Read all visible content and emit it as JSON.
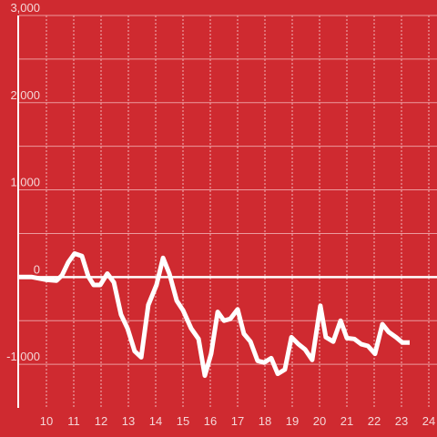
{
  "chart_data": {
    "type": "line",
    "x": [
      9.0,
      9.47,
      9.97,
      10.37,
      10.57,
      10.8,
      11.03,
      11.3,
      11.53,
      11.73,
      11.97,
      12.23,
      12.47,
      12.73,
      12.97,
      13.23,
      13.47,
      13.73,
      14.03,
      14.27,
      14.5,
      14.77,
      15.0,
      15.3,
      15.57,
      15.8,
      16.03,
      16.27,
      16.5,
      16.73,
      17.0,
      17.23,
      17.47,
      17.73,
      17.97,
      18.23,
      18.47,
      18.73,
      18.97,
      19.23,
      19.47,
      19.73,
      20.03,
      20.23,
      20.5,
      20.77,
      21.0,
      21.27,
      21.53,
      21.77,
      22.03,
      22.3,
      22.53,
      22.8,
      23.03,
      23.3
    ],
    "series": [
      {
        "color": "#ffffff",
        "values": [
          0,
          0,
          -30,
          -40,
          20,
          170,
          270,
          240,
          10,
          -90,
          -90,
          40,
          -60,
          -430,
          -590,
          -850,
          -920,
          -320,
          -90,
          220,
          40,
          -270,
          -380,
          -590,
          -710,
          -1130,
          -880,
          -400,
          -500,
          -480,
          -370,
          -650,
          -740,
          -960,
          -980,
          -930,
          -1110,
          -1060,
          -690,
          -770,
          -830,
          -950,
          -330,
          -690,
          -740,
          -500,
          -700,
          -710,
          -770,
          -790,
          -880,
          -540,
          -630,
          -690,
          -750,
          -750
        ]
      }
    ],
    "xlim": [
      9,
      24.3
    ],
    "xticks": [
      10,
      11,
      12,
      13,
      14,
      15,
      16,
      17,
      18,
      19,
      20,
      21,
      22,
      23,
      24
    ],
    "ylim": [
      -1500,
      3000
    ],
    "yticks": [
      {
        "value": 3000,
        "label": "3,000"
      },
      {
        "value": 2000,
        "label": "2,000"
      },
      {
        "value": 1000,
        "label": "1,000"
      },
      0,
      {
        "value": -1000,
        "label": "-1,000"
      }
    ],
    "minor_yticks": [
      2500,
      1500,
      500,
      -500
    ],
    "grid": true,
    "background": "#cf2a30"
  }
}
